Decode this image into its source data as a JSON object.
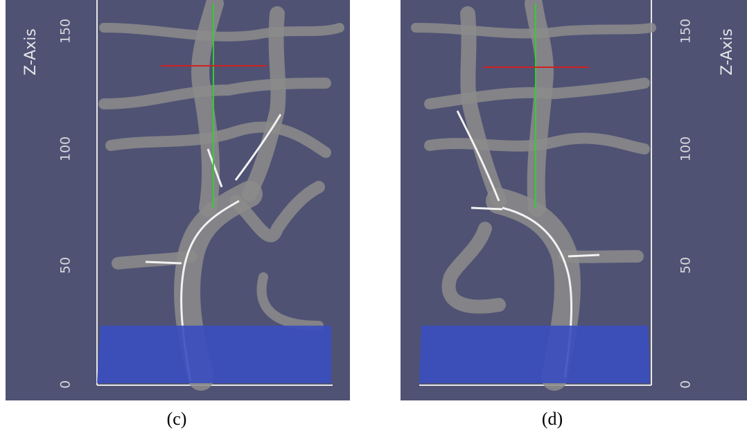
{
  "panels": [
    {
      "axis_label": "Z-Axis",
      "ticks": [
        "0",
        "50",
        "100",
        "150"
      ],
      "caption": "(c)"
    },
    {
      "axis_label": "Z-Axis",
      "ticks": [
        "0",
        "50",
        "100",
        "150"
      ],
      "caption": "(d)"
    }
  ]
}
